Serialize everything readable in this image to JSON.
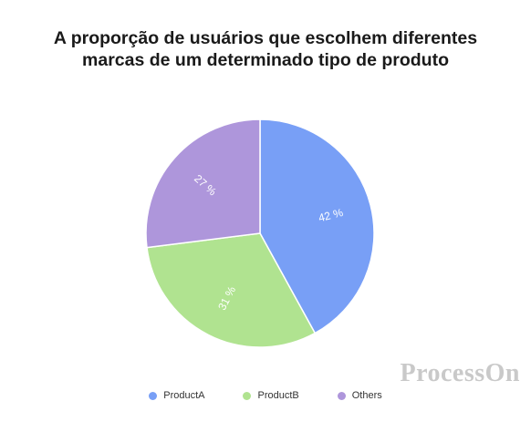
{
  "chart_data": {
    "type": "pie",
    "title_lines": [
      "A proporção de usuários que escolhem diferentes",
      "marcas de um determinado tipo de produto"
    ],
    "slices": [
      {
        "name": "ProductA",
        "value": 42,
        "label": "42 %",
        "color": "#789ff6"
      },
      {
        "name": "ProductB",
        "value": 31,
        "label": "31 %",
        "color": "#b0e390"
      },
      {
        "name": "Others",
        "value": 27,
        "label": "27 %",
        "color": "#ae96db"
      }
    ],
    "legend_position": "bottom"
  },
  "watermark": "ProcessOn"
}
